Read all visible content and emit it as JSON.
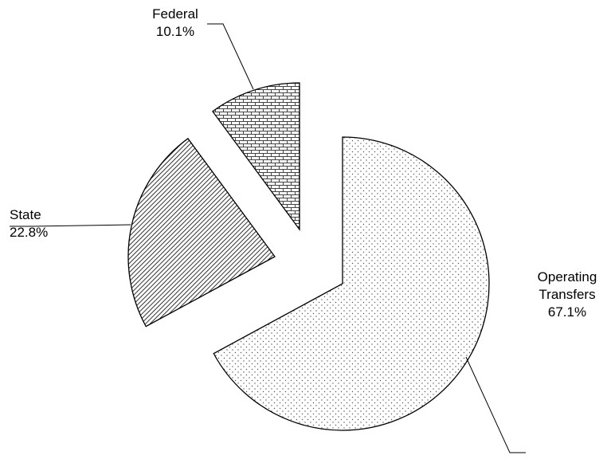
{
  "chart_data": {
    "type": "pie",
    "exploded": true,
    "slices": [
      {
        "label_lines": [
          "Operating",
          "Transfers"
        ],
        "percent_text": "67.1%",
        "value": 67.1,
        "pattern": "dots"
      },
      {
        "label_lines": [
          "State"
        ],
        "percent_text": "22.8%",
        "value": 22.8,
        "pattern": "diagonal-lines"
      },
      {
        "label_lines": [
          "Federal"
        ],
        "percent_text": "10.1%",
        "value": 10.1,
        "pattern": "brick"
      }
    ],
    "colors": {
      "outline": "#000000",
      "background": "#ffffff"
    }
  }
}
